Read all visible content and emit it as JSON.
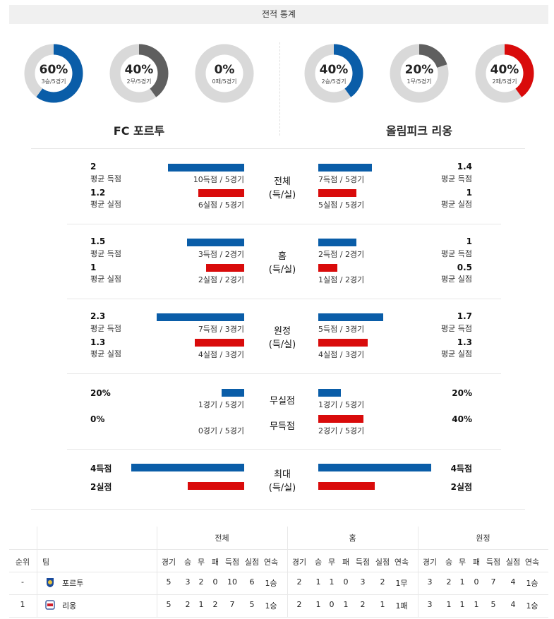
{
  "header": "전적 통계",
  "colors": {
    "blue": "#0a5da8",
    "red": "#d90b0b",
    "gray": "#5f5f5f",
    "track": "#d9d9d9"
  },
  "teams": {
    "left": "FC 포르투",
    "right": "올림피크 리옹"
  },
  "donuts": {
    "left": [
      {
        "pct": "60%",
        "sub": "3승/5경기",
        "fraction": 0.6,
        "color": "blue"
      },
      {
        "pct": "40%",
        "sub": "2무/5경기",
        "fraction": 0.4,
        "color": "gray"
      },
      {
        "pct": "0%",
        "sub": "0패/5경기",
        "fraction": 0.0,
        "color": "red"
      }
    ],
    "right": [
      {
        "pct": "40%",
        "sub": "2승/5경기",
        "fraction": 0.4,
        "color": "blue"
      },
      {
        "pct": "20%",
        "sub": "1무/5경기",
        "fraction": 0.2,
        "color": "gray"
      },
      {
        "pct": "40%",
        "sub": "2패/5경기",
        "fraction": 0.4,
        "color": "red"
      }
    ]
  },
  "sections": [
    {
      "title": "전체",
      "subtitle": "(득/실)",
      "left": {
        "for_val": "2",
        "for_lbl": "평균 득점",
        "for_cap": "10득점 / 5경기",
        "for_frac": 0.465,
        "against_val": "1.2",
        "against_lbl": "평균 실점",
        "against_cap": "6실점 / 5경기",
        "against_frac": 0.28
      },
      "right": {
        "for_val": "1.4",
        "for_lbl": "평균 득점",
        "for_cap": "7득점 / 5경기",
        "for_frac": 0.326,
        "against_val": "1",
        "against_lbl": "평균 실점",
        "against_cap": "5실점 / 5경기",
        "against_frac": 0.233
      }
    },
    {
      "title": "홈",
      "subtitle": "(득/실)",
      "left": {
        "for_val": "1.5",
        "for_lbl": "평균 득점",
        "for_cap": "3득점 / 2경기",
        "for_frac": 0.349,
        "against_val": "1",
        "against_lbl": "평균 실점",
        "against_cap": "2실점 / 2경기",
        "against_frac": 0.233
      },
      "right": {
        "for_val": "1",
        "for_lbl": "평균 득점",
        "for_cap": "2득점 / 2경기",
        "for_frac": 0.233,
        "against_val": "0.5",
        "against_lbl": "평균 실점",
        "against_cap": "1실점 / 2경기",
        "against_frac": 0.116
      }
    },
    {
      "title": "원정",
      "subtitle": "(득/실)",
      "left": {
        "for_val": "2.3",
        "for_lbl": "평균 득점",
        "for_cap": "7득점 / 3경기",
        "for_frac": 0.535,
        "against_val": "1.3",
        "against_lbl": "평균 실점",
        "against_cap": "4실점 / 3경기",
        "against_frac": 0.302
      },
      "right": {
        "for_val": "1.7",
        "for_lbl": "평균 득점",
        "for_cap": "5득점 / 3경기",
        "for_frac": 0.395,
        "against_val": "1.3",
        "against_lbl": "평균 실점",
        "against_cap": "4실점 / 3경기",
        "against_frac": 0.302
      }
    }
  ],
  "clean": {
    "title1": "무실점",
    "title2": "무득점",
    "left": {
      "v1": "20%",
      "cap1": "1경기 / 5경기",
      "f1": 0.2,
      "v2": "0%",
      "cap2": "0경기 / 5경기",
      "f2": 0.0
    },
    "right": {
      "v1": "20%",
      "cap1": "1경기 / 5경기",
      "f1": 0.2,
      "v2": "40%",
      "cap2": "2경기 / 5경기",
      "f2": 0.4
    }
  },
  "max": {
    "title": "최대",
    "subtitle": "(득/실)",
    "left": {
      "v1": "4득점",
      "f1": 1.0,
      "v2": "2실점",
      "f2": 0.5
    },
    "right": {
      "v1": "4득점",
      "f1": 1.0,
      "v2": "2실점",
      "f2": 0.5
    }
  },
  "table": {
    "groups": [
      "전체",
      "홈",
      "원정"
    ],
    "rank_h": "순위",
    "team_h": "팀",
    "cols": [
      "경기",
      "승",
      "무",
      "패",
      "득점",
      "실점",
      "연속"
    ],
    "rows": [
      {
        "rank": "-",
        "team": "포르투",
        "crest": "porto-crest",
        "all": [
          "5",
          "3",
          "2",
          "0",
          "10",
          "6",
          "1승"
        ],
        "home": [
          "2",
          "1",
          "1",
          "0",
          "3",
          "2",
          "1무"
        ],
        "away": [
          "3",
          "2",
          "1",
          "0",
          "7",
          "4",
          "1승"
        ]
      },
      {
        "rank": "1",
        "team": "리옹",
        "crest": "lyon-crest",
        "all": [
          "5",
          "2",
          "1",
          "2",
          "7",
          "5",
          "1승"
        ],
        "home": [
          "2",
          "1",
          "0",
          "1",
          "2",
          "1",
          "1패"
        ],
        "away": [
          "3",
          "1",
          "1",
          "1",
          "5",
          "4",
          "1승"
        ]
      }
    ]
  }
}
